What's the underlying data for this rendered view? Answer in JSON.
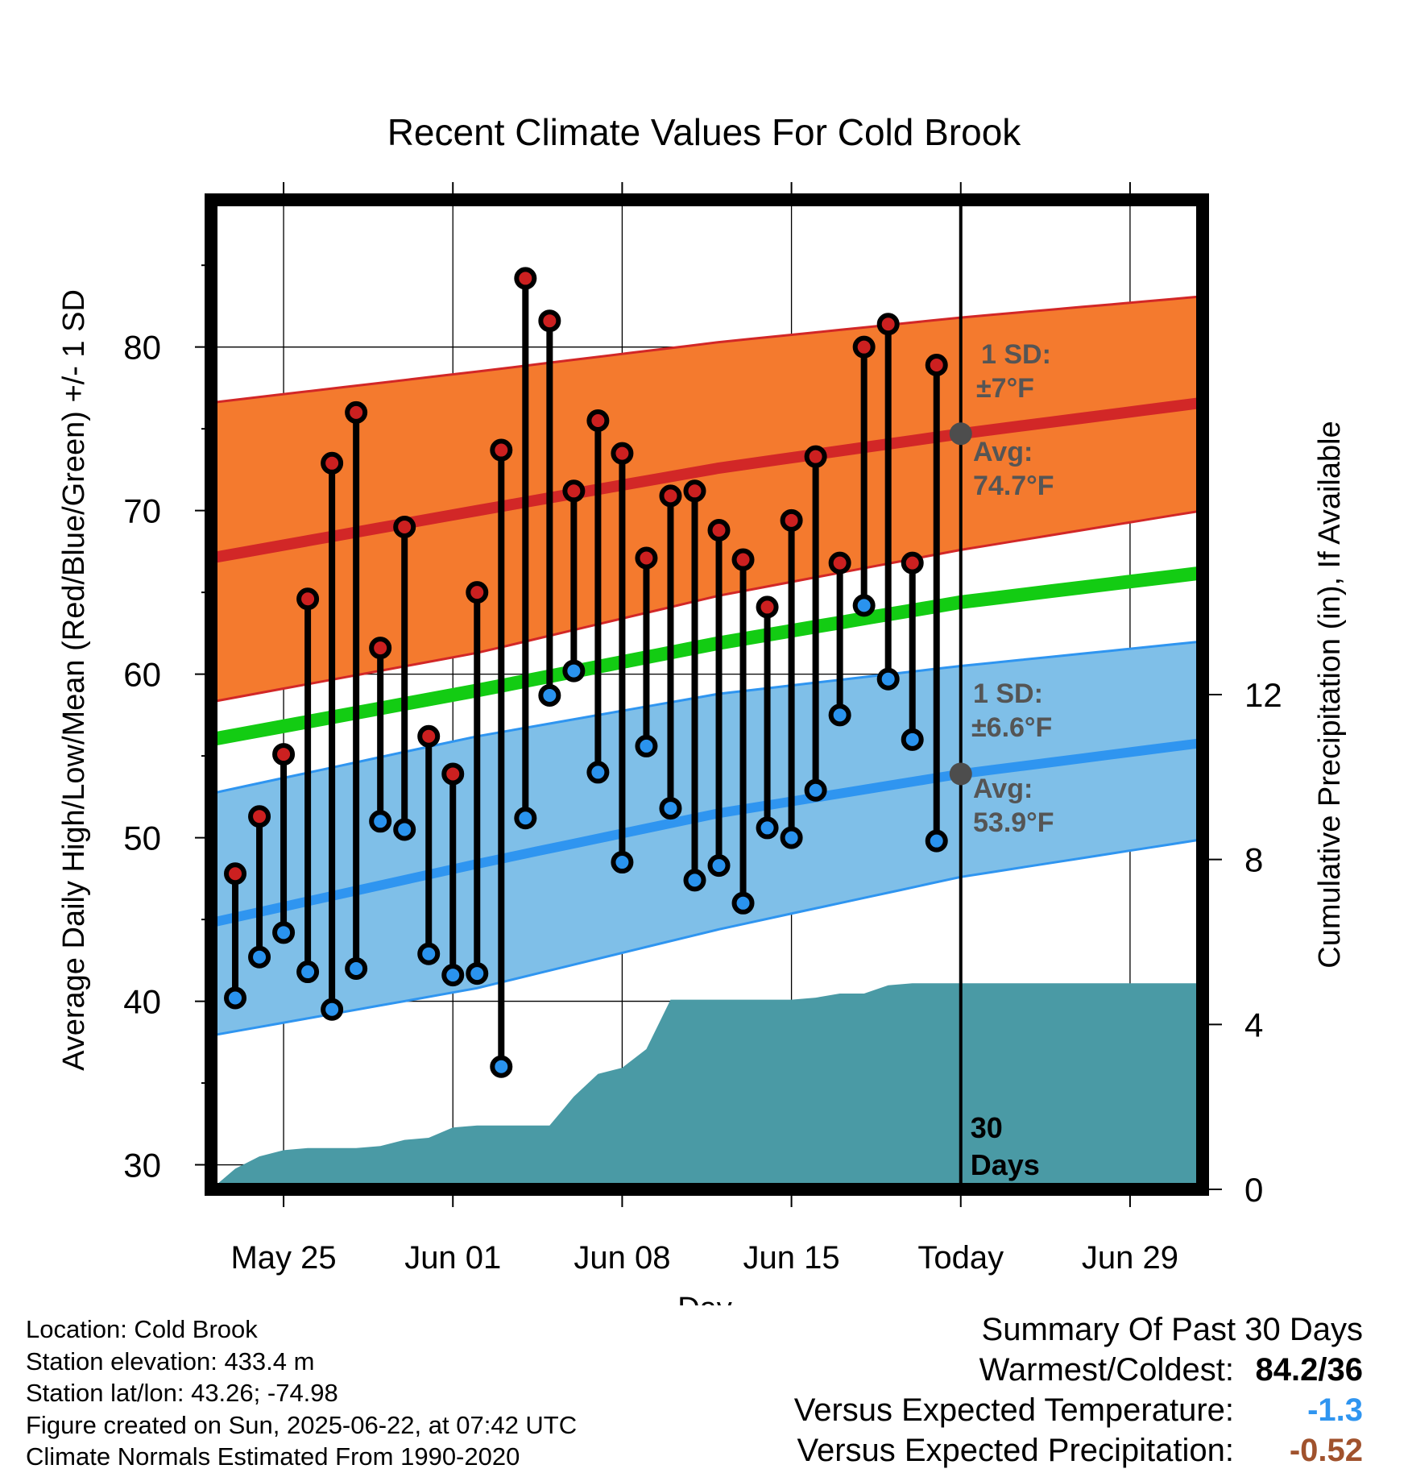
{
  "chart_data": {
    "type": "line",
    "title": "Recent Climate Values For Cold Brook",
    "xlabel": "Day",
    "ylabel": "Average Daily High/Low/Mean (Red/Blue/Green) +/- 1 SD",
    "y2label": "Cumulative Precipitation (in), If Available",
    "ylim": [
      28.5,
      89
    ],
    "y2lim": [
      0,
      24
    ],
    "yticks": [
      30,
      40,
      50,
      60,
      70,
      80
    ],
    "y2ticks": [
      0,
      4,
      8,
      12
    ],
    "x_tick_labels": [
      "May 25",
      "Jun 01",
      "Jun 08",
      "Jun 15",
      "Today",
      "Jun 29"
    ],
    "x_tick_dates": [
      "2025-05-25",
      "2025-06-01",
      "2025-06-08",
      "2025-06-15",
      "2025-06-22",
      "2025-06-29"
    ],
    "x_start": "2025-05-22",
    "x_end": "2025-07-02",
    "today_date": "2025-06-22",
    "today_label": [
      "30",
      "Days"
    ],
    "observed": {
      "dates": [
        "2025-05-23",
        "2025-05-24",
        "2025-05-25",
        "2025-05-26",
        "2025-05-27",
        "2025-05-28",
        "2025-05-29",
        "2025-05-30",
        "2025-05-31",
        "2025-06-01",
        "2025-06-02",
        "2025-06-03",
        "2025-06-04",
        "2025-06-05",
        "2025-06-06",
        "2025-06-07",
        "2025-06-08",
        "2025-06-09",
        "2025-06-10",
        "2025-06-11",
        "2025-06-12",
        "2025-06-13",
        "2025-06-14",
        "2025-06-15",
        "2025-06-16",
        "2025-06-17",
        "2025-06-18",
        "2025-06-19",
        "2025-06-20",
        "2025-06-21"
      ],
      "high": [
        47.8,
        51.3,
        55.1,
        64.6,
        72.9,
        76.0,
        61.6,
        69.0,
        56.2,
        53.9,
        65.0,
        73.7,
        84.2,
        81.6,
        71.2,
        75.5,
        73.5,
        67.1,
        70.9,
        71.2,
        68.8,
        67.0,
        64.1,
        69.4,
        73.3,
        66.8,
        80.0,
        81.4,
        66.8,
        78.9
      ],
      "low": [
        40.2,
        42.7,
        44.2,
        41.8,
        39.5,
        42.0,
        51.0,
        50.5,
        42.9,
        41.6,
        41.7,
        36.0,
        51.2,
        58.7,
        60.2,
        54.0,
        48.5,
        55.6,
        51.8,
        47.4,
        48.3,
        46.0,
        50.6,
        50.0,
        52.9,
        57.5,
        64.2,
        59.7,
        56.0,
        49.8
      ]
    },
    "normal_high": {
      "dates": [
        "2025-05-22",
        "2025-06-02",
        "2025-06-12",
        "2025-06-22",
        "2025-07-02"
      ],
      "avg": [
        67.1,
        70.0,
        72.6,
        74.7,
        76.6
      ],
      "upper": [
        76.6,
        78.5,
        80.3,
        81.8,
        83.1
      ],
      "lower": [
        58.3,
        61.3,
        64.8,
        67.6,
        70.0
      ]
    },
    "normal_mean": {
      "dates": [
        "2025-05-22",
        "2025-06-02",
        "2025-06-12",
        "2025-06-22",
        "2025-07-02"
      ],
      "avg": [
        56.0,
        59.0,
        61.9,
        64.4,
        66.2
      ]
    },
    "normal_low": {
      "dates": [
        "2025-05-22",
        "2025-06-02",
        "2025-06-12",
        "2025-06-22",
        "2025-07-02"
      ],
      "avg": [
        44.8,
        48.4,
        51.5,
        53.9,
        55.8
      ],
      "upper": [
        52.7,
        56.2,
        58.8,
        60.5,
        62.0
      ],
      "lower": [
        37.9,
        40.8,
        44.4,
        47.6,
        49.9
      ]
    },
    "precipitation": {
      "dates": [
        "2025-05-22",
        "2025-05-23",
        "2025-05-24",
        "2025-05-25",
        "2025-05-26",
        "2025-05-27",
        "2025-05-28",
        "2025-05-29",
        "2025-05-30",
        "2025-05-31",
        "2025-06-01",
        "2025-06-02",
        "2025-06-03",
        "2025-06-04",
        "2025-06-05",
        "2025-06-06",
        "2025-06-07",
        "2025-06-08",
        "2025-06-09",
        "2025-06-10",
        "2025-06-11",
        "2025-06-12",
        "2025-06-13",
        "2025-06-14",
        "2025-06-15",
        "2025-06-16",
        "2025-06-17",
        "2025-06-18",
        "2025-06-19",
        "2025-06-20",
        "2025-06-21",
        "2025-06-22",
        "2025-07-02"
      ],
      "cumulative": [
        0.0,
        0.5,
        0.8,
        0.95,
        1.0,
        1.0,
        1.0,
        1.05,
        1.2,
        1.25,
        1.5,
        1.55,
        1.55,
        1.55,
        1.55,
        2.25,
        2.8,
        2.95,
        3.4,
        4.6,
        4.6,
        4.6,
        4.6,
        4.6,
        4.6,
        4.65,
        4.75,
        4.75,
        4.95,
        5.0,
        5.0,
        5.0,
        5.0
      ]
    },
    "annotations": {
      "high_sd_label": "1 SD:",
      "high_sd_value": "±7°F",
      "high_avg_label": "Avg:",
      "high_avg_value": "74.7°F",
      "low_sd_label": "1 SD:",
      "low_sd_value": "±6.6°F",
      "low_avg_label": "Avg:",
      "low_avg_value": "53.9°F"
    },
    "colors": {
      "high_band": "#f47a2e",
      "high_line": "#d22727",
      "low_band": "#7fbfe8",
      "low_line": "#2f95f0",
      "mean_line": "#13cc13",
      "precip": "#4a9aa5",
      "high_marker": "#cc2020",
      "low_marker": "#2a93ee",
      "annotation_text": "#555555"
    }
  },
  "info": {
    "location": "Location: Cold Brook",
    "elevation": "Station elevation: 433.4 m",
    "latlon": "Station lat/lon: 43.26; -74.98",
    "created": "Figure created on Sun, 2025-06-22, at 07:42 UTC",
    "normals": "Climate Normals Estimated From 1990-2020"
  },
  "summary": {
    "heading": "Summary Of Past 30 Days",
    "warm_cold_label": "Warmest/Coldest:",
    "warm_cold_value": "84.2/36",
    "temp_label": "Versus Expected Temperature:",
    "temp_value": "-1.3",
    "temp_color": "#2f95f0",
    "precip_label": "Versus Expected Precipitation:",
    "precip_value": "-0.52",
    "precip_color": "#a0522d"
  }
}
